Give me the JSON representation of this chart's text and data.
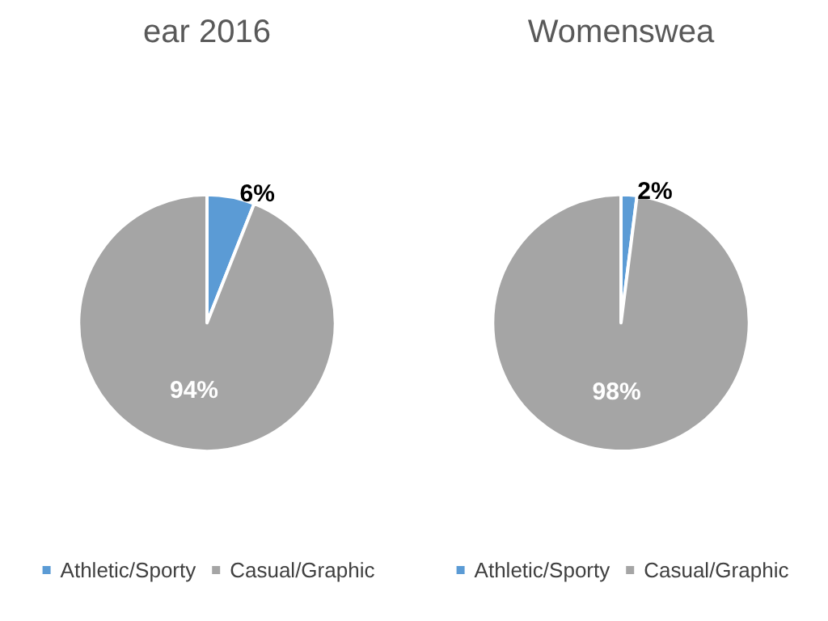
{
  "chart_data": [
    {
      "type": "pie",
      "title": "ear 2016",
      "categories": [
        "Athletic/Sporty",
        "Casual/Graphic"
      ],
      "values": [
        6,
        94
      ],
      "value_labels": [
        "6%",
        "94%"
      ],
      "colors": [
        "#5b9bd5",
        "#a5a5a5"
      ],
      "legend": "bottom"
    },
    {
      "type": "pie",
      "title": "Womenswea",
      "categories": [
        "Athletic/Sporty",
        "Casual/Graphic"
      ],
      "values": [
        2,
        98
      ],
      "value_labels": [
        "2%",
        "98%"
      ],
      "colors": [
        "#5b9bd5",
        "#a5a5a5"
      ],
      "legend": "bottom"
    }
  ]
}
